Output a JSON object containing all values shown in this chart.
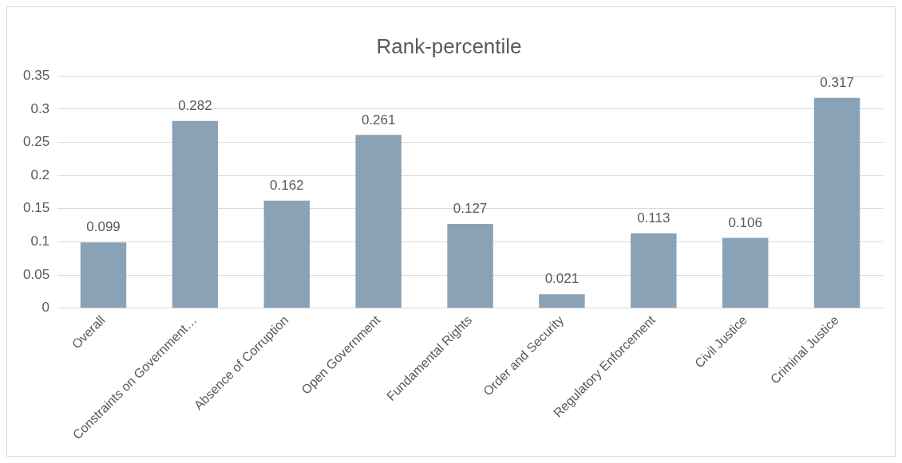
{
  "chart_data": {
    "type": "bar",
    "title": "Rank-percentile",
    "categories": [
      "Overall",
      "Constraints on Government…",
      "Absence of Corruption",
      "Open Government",
      "Fundamental Rights",
      "Order and Security",
      "Regulatory Enforcement",
      "Civil Justice",
      "Criminal Justice"
    ],
    "values": [
      0.099,
      0.282,
      0.162,
      0.261,
      0.127,
      0.021,
      0.113,
      0.106,
      0.317
    ],
    "color": "#8aa2b6",
    "ylim": [
      0,
      0.35
    ],
    "yticks": [
      0,
      0.05,
      0.1,
      0.15,
      0.2,
      0.25,
      0.3,
      0.35
    ],
    "grid": "y",
    "data_labels": true,
    "legend": false
  }
}
